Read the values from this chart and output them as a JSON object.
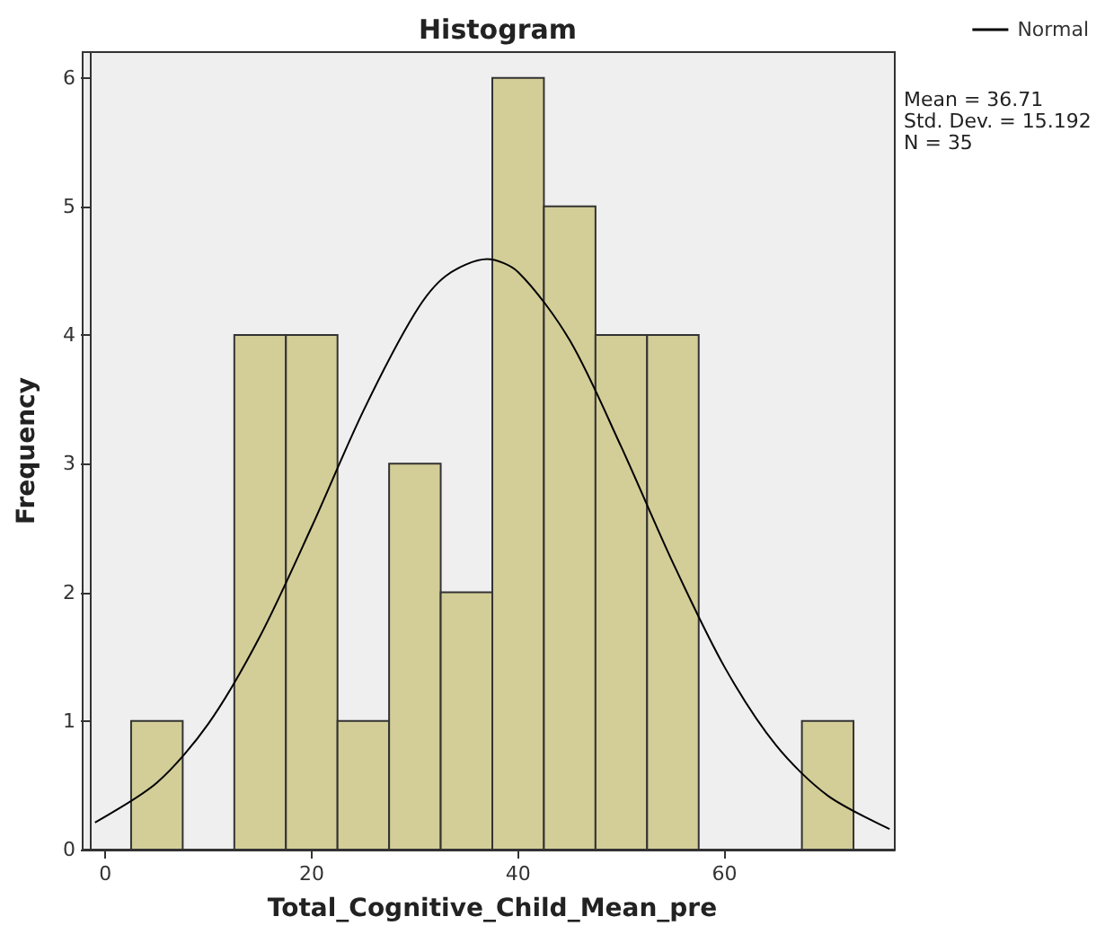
{
  "chart_data": {
    "type": "histogram",
    "title": "Histogram",
    "xlabel": "Total_Cognitive_Child_Mean_pre",
    "ylabel": "Frequency",
    "bins": [
      2.5,
      7.5,
      12.5,
      17.5,
      22.5,
      27.5,
      32.5,
      37.5,
      42.5,
      47.5,
      52.5,
      57.5,
      62.5,
      67.5,
      72.5
    ],
    "values": [
      1,
      0,
      4,
      4,
      1,
      3,
      2,
      6,
      5,
      4,
      4,
      0,
      0,
      1
    ],
    "color": "#d3cd98",
    "series": [
      {
        "type": "line",
        "name": "Normal",
        "color": "#000000",
        "x": [
          -1,
          5,
          10,
          15,
          20,
          25,
          30,
          33,
          37,
          40,
          45,
          50,
          55,
          60,
          65,
          70,
          76
        ],
        "values": [
          0.21,
          0.52,
          0.98,
          1.66,
          2.51,
          3.41,
          4.17,
          4.46,
          4.59,
          4.49,
          3.96,
          3.13,
          2.23,
          1.42,
          0.81,
          0.42,
          0.16
        ]
      }
    ],
    "xlim": [
      -1.5,
      76.5
    ],
    "xticks": [
      0,
      20,
      40,
      60
    ],
    "ylim": [
      0,
      6.2
    ],
    "yticks": [
      0,
      1,
      2,
      3,
      4,
      5,
      6
    ],
    "annotations": [
      "Mean = 36.71",
      "Std. Dev. = 15.192",
      "N = 35"
    ],
    "legend": "top right",
    "grid": false,
    "marker": "none",
    "line_style": "solid"
  }
}
